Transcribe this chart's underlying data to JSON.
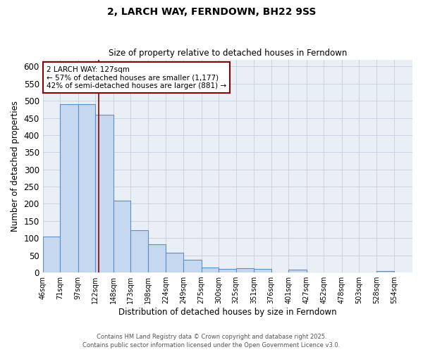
{
  "title1": "2, LARCH WAY, FERNDOWN, BH22 9SS",
  "title2": "Size of property relative to detached houses in Ferndown",
  "xlabel": "Distribution of detached houses by size in Ferndown",
  "ylabel": "Number of detached properties",
  "bin_labels": [
    "46sqm",
    "71sqm",
    "97sqm",
    "122sqm",
    "148sqm",
    "173sqm",
    "198sqm",
    "224sqm",
    "249sqm",
    "275sqm",
    "300sqm",
    "325sqm",
    "351sqm",
    "376sqm",
    "401sqm",
    "427sqm",
    "452sqm",
    "478sqm",
    "503sqm",
    "528sqm",
    "554sqm"
  ],
  "bin_edges": [
    46,
    71,
    97,
    122,
    148,
    173,
    198,
    224,
    249,
    275,
    300,
    325,
    351,
    376,
    401,
    427,
    452,
    478,
    503,
    528,
    554
  ],
  "bar_values": [
    105,
    490,
    490,
    460,
    210,
    123,
    83,
    57,
    38,
    15,
    10,
    12,
    10,
    0,
    8,
    0,
    0,
    0,
    0,
    5
  ],
  "bar_color": "#c5d8ef",
  "bar_edge_color": "#5b8fc9",
  "grid_color": "#c8d4e3",
  "background_color": "#eaeff6",
  "red_line_x": 127,
  "annotation_line1": "2 LARCH WAY: 127sqm",
  "annotation_line2": "← 57% of detached houses are smaller (1,177)",
  "annotation_line3": "42% of semi-detached houses are larger (881) →",
  "ylim": [
    0,
    620
  ],
  "yticks": [
    0,
    50,
    100,
    150,
    200,
    250,
    300,
    350,
    400,
    450,
    500,
    550,
    600
  ],
  "footer1": "Contains HM Land Registry data © Crown copyright and database right 2025.",
  "footer2": "Contains public sector information licensed under the Open Government Licence v3.0."
}
